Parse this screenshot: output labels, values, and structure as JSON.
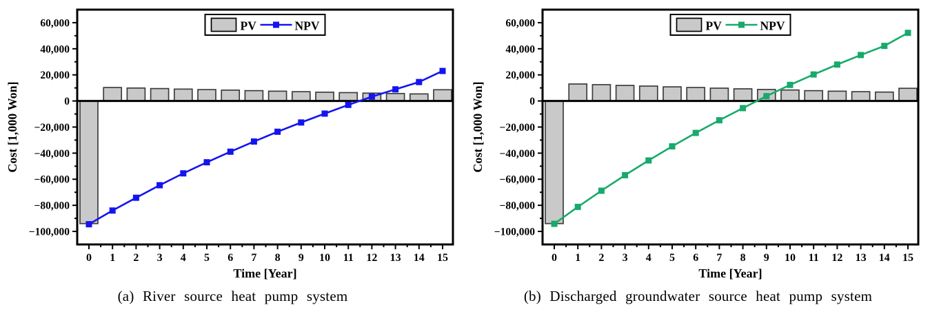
{
  "chart_data": [
    {
      "type": "bar+line",
      "caption": "(a) River source heat pump system",
      "xlabel": "Time [Year]",
      "ylabel": "Cost [1,000 Won]",
      "legend": [
        "PV",
        "NPV"
      ],
      "legend_position": "top-center",
      "grid": false,
      "categories": [
        0,
        1,
        2,
        3,
        4,
        5,
        6,
        7,
        8,
        9,
        10,
        11,
        12,
        13,
        14,
        15
      ],
      "ylim": [
        -110000,
        70000
      ],
      "yticks": [
        -100000,
        -80000,
        -60000,
        -40000,
        -20000,
        0,
        20000,
        40000,
        60000
      ],
      "series": [
        {
          "name": "PV",
          "type": "bar",
          "fill": "#c9c9c9",
          "stroke": "#3d3d3d",
          "values": [
            -94000,
            10300,
            9900,
            9500,
            9100,
            8700,
            8300,
            7900,
            7500,
            7100,
            6700,
            6400,
            6000,
            5700,
            5400,
            8600
          ]
        },
        {
          "name": "NPV",
          "type": "line",
          "color": "#1414f0",
          "marker": "square",
          "values": [
            -94500,
            -84000,
            -74200,
            -64600,
            -55500,
            -47000,
            -38900,
            -31100,
            -23600,
            -16500,
            -9700,
            -3000,
            3300,
            8900,
            14500,
            23000
          ]
        }
      ]
    },
    {
      "type": "bar+line",
      "caption": "(b) Discharged groundwater source heat pump system",
      "xlabel": "Time [Year]",
      "ylabel": "Cost [1,000 Won]",
      "legend": [
        "PV",
        "NPV"
      ],
      "legend_position": "top-center",
      "grid": false,
      "categories": [
        0,
        1,
        2,
        3,
        4,
        5,
        6,
        7,
        8,
        9,
        10,
        11,
        12,
        13,
        14,
        15
      ],
      "ylim": [
        -110000,
        70000
      ],
      "yticks": [
        -100000,
        -80000,
        -60000,
        -40000,
        -20000,
        0,
        20000,
        40000,
        60000
      ],
      "series": [
        {
          "name": "PV",
          "type": "bar",
          "fill": "#c9c9c9",
          "stroke": "#3d3d3d",
          "values": [
            -94000,
            13000,
            12500,
            11900,
            11400,
            10800,
            10300,
            9800,
            9300,
            8800,
            8400,
            7900,
            7500,
            7100,
            6800,
            9700
          ]
        },
        {
          "name": "NPV",
          "type": "line",
          "color": "#17aa6b",
          "marker": "square",
          "values": [
            -94200,
            -81200,
            -68800,
            -56900,
            -45600,
            -34800,
            -24500,
            -14800,
            -5500,
            3700,
            12300,
            20300,
            27900,
            35200,
            42200,
            52200
          ]
        }
      ]
    }
  ]
}
